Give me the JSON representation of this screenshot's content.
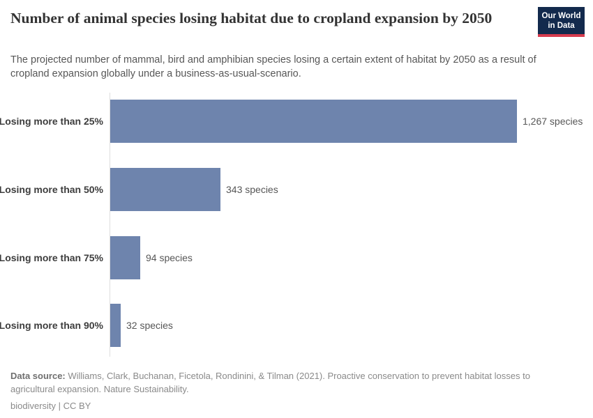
{
  "logo": {
    "line1": "Our World",
    "line2": "in Data"
  },
  "chart_data": {
    "type": "bar",
    "orientation": "horizontal",
    "title": "Number of animal species losing habitat due to cropland expansion by 2050",
    "subtitle": "The projected number of mammal, bird and amphibian species losing a certain extent of habitat by 2050 as a result of cropland expansion globally under a business-as-usual-scenario.",
    "categories": [
      "Losing more than 25%",
      "Losing more than 50%",
      "Losing more than 75%",
      "Losing more than 90%"
    ],
    "values": [
      1267,
      343,
      94,
      32
    ],
    "value_labels": [
      "1,267 species",
      "343 species",
      "94 species",
      "32 species"
    ],
    "unit": "species",
    "xlim": [
      0,
      1267
    ],
    "grid": false,
    "legend": "none",
    "bar_color": "#6e84ad",
    "axis_color": "#dedede"
  },
  "footer": {
    "source_label": "Data source:",
    "source_text": " Williams, Clark, Buchanan, Ficetola, Rondinini, & Tilman (2021). Proactive conservation to prevent habitat losses to agricultural expansion. Nature Sustainability.",
    "license": "biodiversity | CC BY"
  }
}
